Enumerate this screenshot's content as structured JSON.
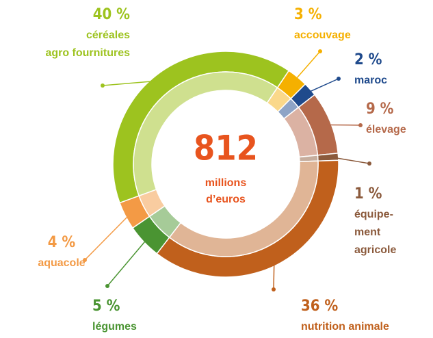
{
  "chart_data": {
    "type": "donut",
    "center_label": "812",
    "center_sublabel": [
      "millions",
      "d’euros"
    ],
    "categories": [
      [
        "accouvage"
      ],
      [
        "maroc"
      ],
      [
        "élevage"
      ],
      [
        "équipe-",
        "ment",
        "agricole"
      ],
      [
        "nutrition animale"
      ],
      [
        "légumes"
      ],
      [
        "aquacole"
      ],
      [
        "céréales",
        "agro fournitures"
      ]
    ],
    "values": [
      3,
      2,
      9,
      1,
      36,
      5,
      4,
      40
    ],
    "value_labels": [
      "3 %",
      "2 %",
      "9 %",
      "1 %",
      "36 %",
      "5 %",
      "4 %",
      "40 %"
    ],
    "colors": [
      "#f5b000",
      "#1f4a8c",
      "#b5694a",
      "#8b5a3c",
      "#c0601c",
      "#4a9432",
      "#f39a45",
      "#9dc31f"
    ],
    "inner_colors": [
      "#fad88a",
      "#8ea4c6",
      "#dbb2a3",
      "#c6ad9d",
      "#e0b596",
      "#a6cb98",
      "#f9cca0",
      "#cfe08f"
    ]
  }
}
